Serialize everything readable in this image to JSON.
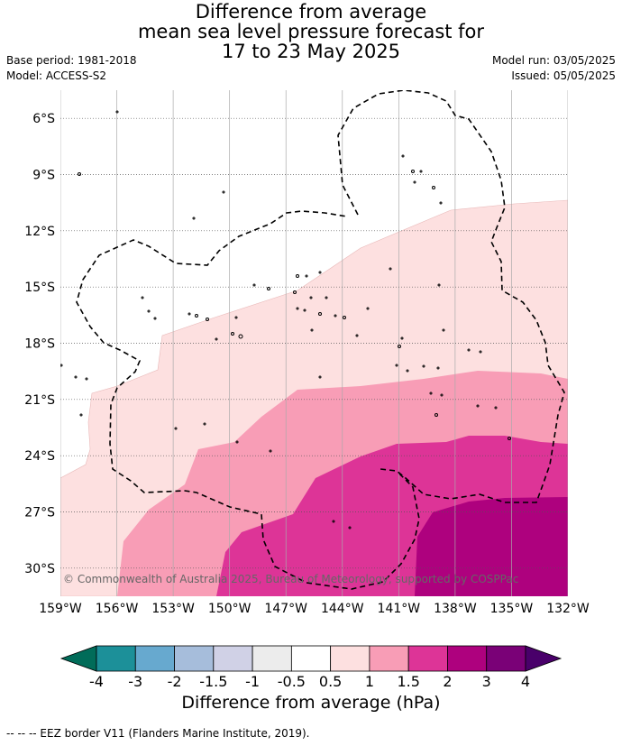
{
  "title": {
    "line1": "Difference from average",
    "line2": "mean sea level pressure forecast for",
    "line3": "17 to 23 May 2025"
  },
  "meta": {
    "base_period": "Base period: 1981-2018",
    "model": "Model: ACCESS-S2",
    "model_run": "Model run: 03/05/2025",
    "issued": "Issued: 05/05/2025"
  },
  "map": {
    "lat_labels": [
      "6°S",
      "9°S",
      "12°S",
      "15°S",
      "18°S",
      "21°S",
      "24°S",
      "27°S",
      "30°S"
    ],
    "lat_values": [
      -6,
      -9,
      -12,
      -15,
      -18,
      -21,
      -24,
      -27,
      -30
    ],
    "lon_labels": [
      "159°W",
      "156°W",
      "153°W",
      "150°W",
      "147°W",
      "144°W",
      "141°W",
      "138°W",
      "135°W",
      "132°W"
    ],
    "lon_values": [
      -159,
      -156,
      -153,
      -150,
      -147,
      -144,
      -141,
      -138,
      -135,
      -132
    ],
    "lat_range": [
      -31.5,
      -4.5
    ],
    "lon_range": [
      -159,
      -132
    ],
    "copyright": "© Commonwealth of Australia 2025, Bureau of Meteorology, supported by COSPPac",
    "contour_levels_hPa": [
      0.5,
      1,
      1.5,
      2
    ],
    "fill_colors": {
      "0.5_to_1": "#fde0e0",
      "1_to_1.5": "#f89db6",
      "1.5_to_2": "#dd3497",
      "2_to_3": "#ae017e"
    }
  },
  "colorbar": {
    "title": "Difference from average (hPa)",
    "tick_labels": [
      "-4",
      "-3",
      "-2",
      "-1.5",
      "-1",
      "-0.5",
      "0.5",
      "1",
      "1.5",
      "2",
      "3",
      "4"
    ],
    "colors": [
      "#016c59",
      "#1c9099",
      "#67a9cf",
      "#a6bddb",
      "#d0d1e6",
      "#ececec",
      "#ffffff",
      "#fde0e0",
      "#f89db6",
      "#dd3497",
      "#ae017e",
      "#7a0177",
      "#49006a"
    ]
  },
  "footnote": "--  --  -- EEZ border V11 (Flanders Marine Institute, 2019)."
}
